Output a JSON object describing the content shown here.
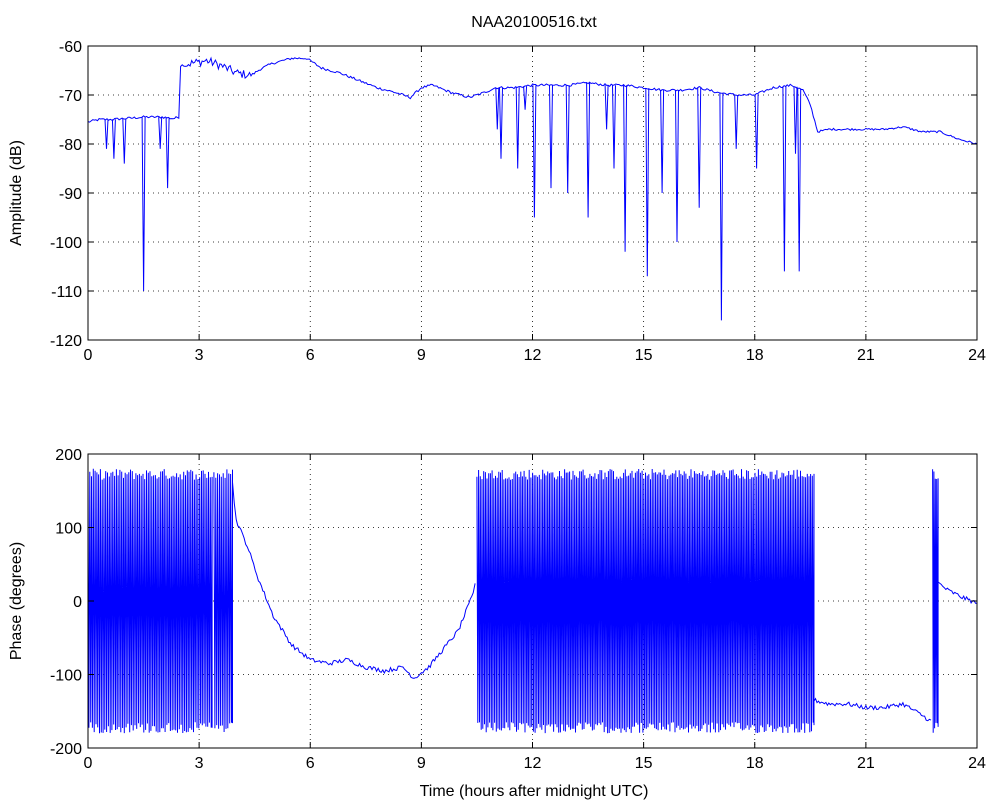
{
  "title": "NAA20100516.txt",
  "colors": {
    "series": "#0000ff",
    "axes": "#000000",
    "grid": "#000000",
    "background": "#ffffff"
  },
  "chart_data": [
    {
      "type": "line",
      "title": "NAA20100516.txt",
      "xlabel": "",
      "ylabel": "Amplitude (dB)",
      "xlim": [
        0,
        24
      ],
      "ylim": [
        -120,
        -60
      ],
      "xticks": [
        "0",
        "3",
        "6",
        "9",
        "12",
        "15",
        "18",
        "21",
        "24"
      ],
      "yticks": [
        "-120",
        "-110",
        "-100",
        "-90",
        "-80",
        "-70",
        "-60"
      ],
      "grid": true,
      "series": [
        {
          "color": "#0000ff",
          "x": [
            0,
            0.3,
            0.6,
            1.0,
            1.5,
            2.0,
            2.3,
            2.45,
            2.5,
            2.8,
            3.2,
            3.6,
            4.0,
            4.4,
            4.7,
            5.0,
            5.5,
            5.9,
            6.3,
            6.8,
            7.3,
            7.8,
            8.3,
            8.7,
            9.0,
            9.3,
            9.8,
            10.3,
            10.7,
            11.0,
            11.5,
            12.0,
            12.5,
            13.0,
            13.5,
            14.0,
            14.5,
            15.0,
            15.5,
            16.0,
            16.5,
            17.0,
            17.5,
            18.0,
            18.5,
            19.0,
            19.3,
            19.5,
            19.7,
            20.0,
            20.5,
            21.0,
            21.5,
            22.0,
            22.5,
            23.0,
            23.5,
            24.0
          ],
          "y": [
            -75.5,
            -75.0,
            -75.0,
            -74.8,
            -74.5,
            -74.5,
            -74.8,
            -74.5,
            -64.0,
            -63.5,
            -63.0,
            -64.0,
            -65.5,
            -66.0,
            -64.5,
            -63.5,
            -62.5,
            -62.5,
            -64.5,
            -65.5,
            -67.0,
            -68.5,
            -69.5,
            -70.5,
            -68.5,
            -68.0,
            -69.5,
            -70.5,
            -69.5,
            -68.5,
            -68.5,
            -68.0,
            -68.0,
            -68.0,
            -67.5,
            -68.0,
            -68.0,
            -68.5,
            -69.0,
            -69.0,
            -68.5,
            -69.5,
            -70.0,
            -70.0,
            -68.5,
            -68.0,
            -69.0,
            -72.0,
            -77.5,
            -77.0,
            -77.0,
            -77.0,
            -77.0,
            -76.5,
            -77.5,
            -77.5,
            -79.0,
            -80.0
          ],
          "spikes": [
            {
              "x": 0.5,
              "y": -81
            },
            {
              "x": 0.7,
              "y": -83
            },
            {
              "x": 0.98,
              "y": -84
            },
            {
              "x": 1.5,
              "y": -110
            },
            {
              "x": 1.95,
              "y": -81
            },
            {
              "x": 2.15,
              "y": -89
            },
            {
              "x": 11.05,
              "y": -77
            },
            {
              "x": 11.15,
              "y": -83
            },
            {
              "x": 11.6,
              "y": -85
            },
            {
              "x": 11.8,
              "y": -73
            },
            {
              "x": 12.05,
              "y": -95
            },
            {
              "x": 12.5,
              "y": -89
            },
            {
              "x": 12.95,
              "y": -90
            },
            {
              "x": 13.5,
              "y": -95
            },
            {
              "x": 14.0,
              "y": -77
            },
            {
              "x": 14.2,
              "y": -85
            },
            {
              "x": 14.5,
              "y": -102
            },
            {
              "x": 15.1,
              "y": -107
            },
            {
              "x": 15.5,
              "y": -90
            },
            {
              "x": 15.9,
              "y": -100
            },
            {
              "x": 16.5,
              "y": -93
            },
            {
              "x": 17.1,
              "y": -116
            },
            {
              "x": 17.5,
              "y": -81
            },
            {
              "x": 18.05,
              "y": -85
            },
            {
              "x": 18.8,
              "y": -106
            },
            {
              "x": 19.1,
              "y": -82
            },
            {
              "x": 19.2,
              "y": -106
            }
          ]
        }
      ]
    },
    {
      "type": "line",
      "title": "",
      "xlabel": "Time (hours after midnight UTC)",
      "ylabel": "Phase (degrees)",
      "xlim": [
        0,
        24
      ],
      "ylim": [
        -200,
        200
      ],
      "xticks": [
        "0",
        "3",
        "6",
        "9",
        "12",
        "15",
        "18",
        "21",
        "24"
      ],
      "yticks": [
        "-200",
        "-100",
        "0",
        "100",
        "200"
      ],
      "grid": true,
      "series": [
        {
          "color": "#0000ff",
          "wrap_bands": [
            {
              "x0": 0.0,
              "x1": 3.35,
              "count": 70
            },
            {
              "x0": 3.4,
              "x1": 3.9,
              "count": 10
            },
            {
              "x0": 10.5,
              "x1": 19.6,
              "count": 200
            },
            {
              "x0": 22.8,
              "x1": 22.95,
              "count": 4
            }
          ],
          "x": [
            3.9,
            4.0,
            4.3,
            4.6,
            5.0,
            5.5,
            6.0,
            6.5,
            7.0,
            7.5,
            8.0,
            8.5,
            8.8,
            9.2,
            9.6,
            10.0,
            10.4,
            10.5,
            19.6,
            20.0,
            20.5,
            21.0,
            21.5,
            22.0,
            22.5,
            22.8,
            22.95,
            23.2,
            23.6,
            24.0
          ],
          "y": [
            160,
            110,
            75,
            30,
            -20,
            -60,
            -80,
            -85,
            -80,
            -90,
            -95,
            -90,
            -105,
            -90,
            -65,
            -40,
            10,
            40,
            -135,
            -140,
            -140,
            -145,
            -145,
            -140,
            -155,
            -165,
            25,
            15,
            5,
            -3
          ]
        }
      ]
    }
  ]
}
